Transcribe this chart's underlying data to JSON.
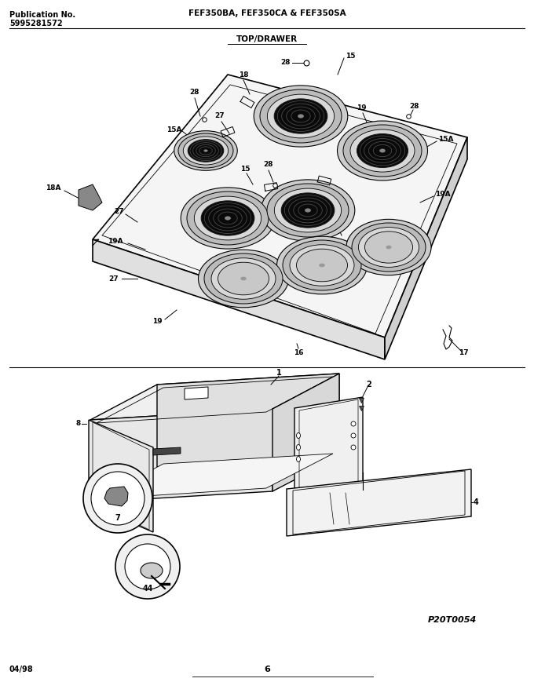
{
  "title_left_1": "Publication No.",
  "title_left_2": "5995281572",
  "title_center": "FEF350BA, FEF350CA & FEF350SA",
  "section_label": "TOP/DRAWER",
  "footer_left": "04/98",
  "footer_center": "6",
  "watermark": "P20T0054",
  "bg_color": "#ffffff",
  "line_color": "#000000",
  "text_color": "#000000",
  "fig_width": 6.8,
  "fig_height": 8.69,
  "dpi": 100
}
